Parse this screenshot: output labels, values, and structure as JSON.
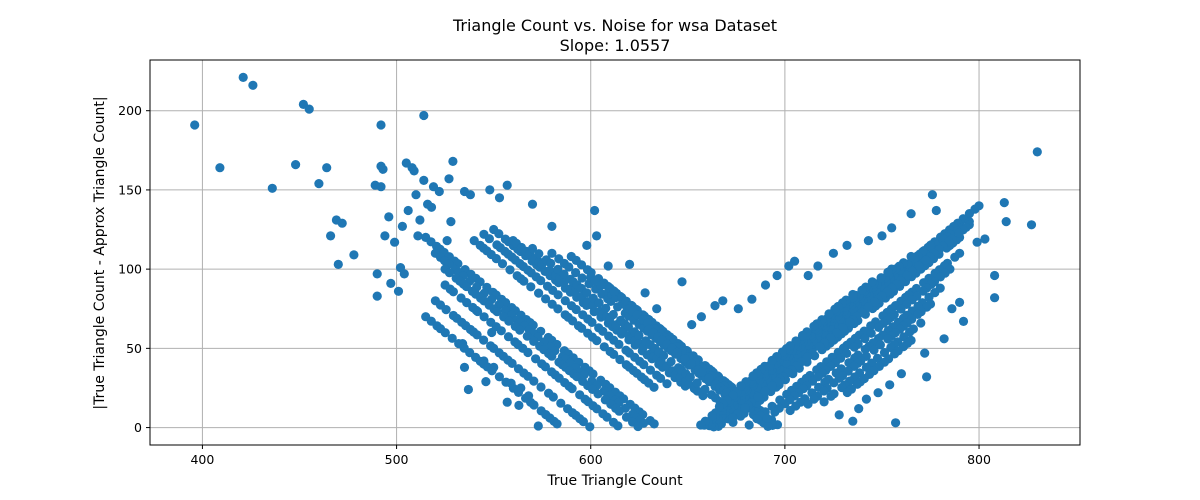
{
  "chart_data": {
    "type": "scatter",
    "title": "Triangle Count vs. Noise for wsa Dataset",
    "subtitle": "Slope: 1.0557",
    "xlabel": "True Triangle Count",
    "ylabel": "|True Triangle Count - Approx Triangle Count|",
    "xlim": [
      373,
      852
    ],
    "ylim": [
      -11,
      232
    ],
    "xticks": [
      400,
      500,
      600,
      700,
      800
    ],
    "yticks": [
      0,
      50,
      100,
      150,
      200
    ],
    "grid": true,
    "marker_color": "#1f77b4",
    "outlier_points": [
      [
        396,
        191
      ],
      [
        409,
        164
      ],
      [
        421,
        221
      ],
      [
        426,
        216
      ],
      [
        436,
        151
      ],
      [
        448,
        166
      ],
      [
        452,
        204
      ],
      [
        455,
        201
      ],
      [
        460,
        154
      ],
      [
        464,
        164
      ],
      [
        466,
        121
      ],
      [
        469,
        131
      ],
      [
        470,
        103
      ],
      [
        472,
        129
      ],
      [
        478,
        109
      ],
      [
        489,
        153
      ],
      [
        490,
        97
      ],
      [
        490,
        83
      ],
      [
        492,
        152
      ],
      [
        492,
        191
      ],
      [
        492,
        165
      ],
      [
        493,
        163
      ],
      [
        494,
        121
      ],
      [
        496,
        133
      ],
      [
        497,
        91
      ],
      [
        499,
        117
      ],
      [
        501,
        86
      ],
      [
        502,
        101
      ],
      [
        503,
        127
      ],
      [
        504,
        97
      ],
      [
        505,
        167
      ],
      [
        506,
        137
      ],
      [
        508,
        164
      ],
      [
        509,
        162
      ],
      [
        510,
        147
      ],
      [
        511,
        121
      ],
      [
        512,
        131
      ],
      [
        514,
        197
      ],
      [
        514,
        156
      ],
      [
        516,
        141
      ],
      [
        518,
        139
      ],
      [
        519,
        152
      ],
      [
        522,
        149
      ],
      [
        526,
        118
      ],
      [
        527,
        157
      ],
      [
        528,
        130
      ],
      [
        529,
        168
      ],
      [
        534,
        53
      ],
      [
        535,
        38
      ],
      [
        535,
        149
      ],
      [
        537,
        24
      ],
      [
        538,
        147
      ],
      [
        541,
        74
      ],
      [
        545,
        42
      ],
      [
        546,
        29
      ],
      [
        548,
        150
      ],
      [
        549,
        60
      ],
      [
        550,
        38
      ],
      [
        553,
        145
      ],
      [
        557,
        16
      ],
      [
        557,
        153
      ],
      [
        559,
        28
      ],
      [
        563,
        14
      ],
      [
        564,
        25
      ],
      [
        568,
        20
      ],
      [
        570,
        141
      ],
      [
        573,
        1
      ],
      [
        580,
        127
      ],
      [
        598,
        115
      ],
      [
        602,
        137
      ],
      [
        603,
        121
      ],
      [
        609,
        102
      ],
      [
        620,
        103
      ],
      [
        628,
        85
      ],
      [
        634,
        75
      ],
      [
        647,
        92
      ],
      [
        652,
        65
      ],
      [
        657,
        70
      ],
      [
        664,
        77
      ],
      [
        668,
        80
      ],
      [
        676,
        75
      ],
      [
        683,
        81
      ],
      [
        690,
        90
      ],
      [
        696,
        96
      ],
      [
        702,
        102
      ],
      [
        705,
        105
      ],
      [
        712,
        96
      ],
      [
        717,
        102
      ],
      [
        725,
        110
      ],
      [
        732,
        115
      ],
      [
        743,
        118
      ],
      [
        750,
        121
      ],
      [
        755,
        126
      ],
      [
        765,
        135
      ],
      [
        772,
        47
      ],
      [
        773,
        32
      ],
      [
        776,
        147
      ],
      [
        778,
        137
      ],
      [
        782,
        56
      ],
      [
        786,
        75
      ],
      [
        790,
        79
      ],
      [
        792,
        67
      ],
      [
        799,
        117
      ],
      [
        803,
        119
      ],
      [
        808,
        96
      ],
      [
        808,
        82
      ],
      [
        813,
        142
      ],
      [
        814,
        130
      ],
      [
        827,
        128
      ],
      [
        830,
        174
      ],
      [
        757,
        3
      ],
      [
        760,
        34
      ],
      [
        754,
        27
      ],
      [
        748,
        22
      ],
      [
        742,
        18
      ],
      [
        738,
        12
      ],
      [
        735,
        4
      ],
      [
        728,
        8
      ]
    ],
    "bands_comment": "dense V-shaped bands of points at 10-unit spacing",
    "descending_bands": [
      {
        "x_start": 515,
        "x_end": 690,
        "y_start": 120
      },
      {
        "x_start": 520,
        "x_end": 680,
        "y_start": 110
      },
      {
        "x_start": 525,
        "x_end": 670,
        "y_start": 100
      },
      {
        "x_start": 525,
        "x_end": 660,
        "y_start": 90
      },
      {
        "x_start": 520,
        "x_end": 650,
        "y_start": 80
      },
      {
        "x_start": 515,
        "x_end": 640,
        "y_start": 70
      },
      {
        "x_start": 540,
        "x_end": 635,
        "y_start": 118
      },
      {
        "x_start": 545,
        "x_end": 640,
        "y_start": 122
      },
      {
        "x_start": 550,
        "x_end": 650,
        "y_start": 125
      },
      {
        "x_start": 560,
        "x_end": 660,
        "y_start": 118
      },
      {
        "x_start": 570,
        "x_end": 670,
        "y_start": 113
      },
      {
        "x_start": 580,
        "x_end": 680,
        "y_start": 110
      },
      {
        "x_start": 590,
        "x_end": 690,
        "y_start": 108
      },
      {
        "x_start": 600,
        "x_end": 700,
        "y_start": 95
      },
      {
        "x_start": 610,
        "x_end": 710,
        "y_start": 88
      },
      {
        "x_start": 620,
        "x_end": 710,
        "y_start": 75
      },
      {
        "x_start": 630,
        "x_end": 710,
        "y_start": 62
      }
    ],
    "ascending_bands": [
      {
        "x_start": 605,
        "x_end": 800,
        "y_end": 140
      },
      {
        "x_start": 615,
        "x_end": 795,
        "y_end": 130
      },
      {
        "x_start": 625,
        "x_end": 785,
        "y_end": 122
      },
      {
        "x_start": 635,
        "x_end": 775,
        "y_end": 115
      },
      {
        "x_start": 645,
        "x_end": 765,
        "y_end": 108
      },
      {
        "x_start": 655,
        "x_end": 755,
        "y_end": 100
      },
      {
        "x_start": 665,
        "x_end": 745,
        "y_end": 92
      },
      {
        "x_start": 675,
        "x_end": 735,
        "y_end": 84
      },
      {
        "x_start": 660,
        "x_end": 790,
        "y_end": 120
      },
      {
        "x_start": 670,
        "x_end": 795,
        "y_end": 128
      },
      {
        "x_start": 680,
        "x_end": 790,
        "y_end": 110
      },
      {
        "x_start": 690,
        "x_end": 785,
        "y_end": 100
      },
      {
        "x_start": 700,
        "x_end": 780,
        "y_end": 88
      },
      {
        "x_start": 710,
        "x_end": 775,
        "y_end": 78
      },
      {
        "x_start": 720,
        "x_end": 770,
        "y_end": 66
      },
      {
        "x_start": 730,
        "x_end": 765,
        "y_end": 55
      }
    ]
  }
}
